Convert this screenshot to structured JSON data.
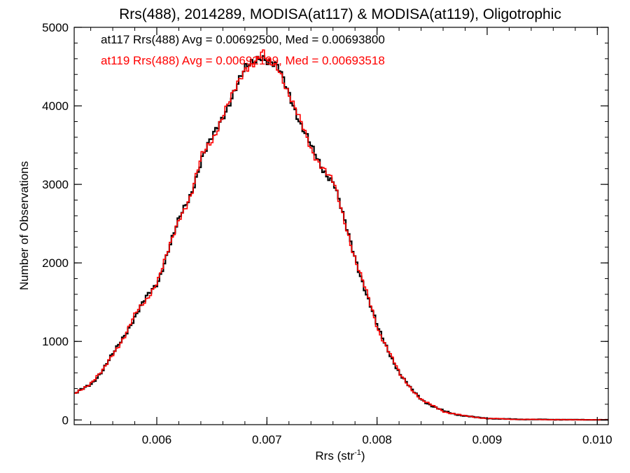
{
  "chart_data": {
    "type": "line",
    "step": true,
    "title": "Rrs(488), 2014289, MODISA(at117) & MODISA(at119), Oligotrophic",
    "xlabel": "Rrs (str",
    "xlabel_sup": "-1",
    "xlabel_close": ")",
    "ylabel": "Number of Observations",
    "xlim": [
      0.00525,
      0.0101
    ],
    "ylim": [
      -60,
      5000
    ],
    "x_ticks": [
      0.006,
      0.007,
      0.008,
      0.009,
      0.01
    ],
    "x_tick_labels": [
      "0.006",
      "0.007",
      "0.008",
      "0.009",
      "0.010"
    ],
    "y_ticks": [
      0,
      1000,
      2000,
      3000,
      4000,
      5000
    ],
    "y_tick_labels": [
      "0",
      "1000",
      "2000",
      "3000",
      "4000",
      "5000"
    ],
    "x_minor_step": 0.0002,
    "y_minor_step": 200,
    "grid": false,
    "annotations": [
      {
        "text": "at117 Rrs(488) Avg = 0.00692500, Med = 0.00693800",
        "color": "#000000"
      },
      {
        "text": "at119 Rrs(488) Avg = 0.00692199, Med = 0.00693518",
        "color": "#ff0000"
      }
    ],
    "series": [
      {
        "name": "at117",
        "color": "#000000",
        "x": [
          0.00525,
          0.0054,
          0.0055,
          0.0056,
          0.0057,
          0.0058,
          0.0059,
          0.006,
          0.0061,
          0.0062,
          0.0063,
          0.0064,
          0.0065,
          0.0066,
          0.0067,
          0.0068,
          0.0069,
          0.00695,
          0.007,
          0.0071,
          0.0072,
          0.0073,
          0.0074,
          0.0075,
          0.0076,
          0.0077,
          0.0078,
          0.0079,
          0.008,
          0.0081,
          0.0082,
          0.0083,
          0.0084,
          0.0085,
          0.0086,
          0.0087,
          0.0088,
          0.0089,
          0.009,
          0.0091,
          0.0092,
          0.0093,
          0.0095,
          0.0097,
          0.0099,
          0.0101
        ],
        "y": [
          330,
          470,
          630,
          850,
          1090,
          1330,
          1560,
          1760,
          2180,
          2570,
          2880,
          3330,
          3600,
          3900,
          4200,
          4470,
          4620,
          4650,
          4560,
          4460,
          4150,
          3750,
          3450,
          3200,
          3020,
          2500,
          2040,
          1580,
          1160,
          870,
          580,
          390,
          260,
          170,
          110,
          75,
          50,
          30,
          20,
          14,
          10,
          7,
          5,
          3,
          2,
          1
        ]
      },
      {
        "name": "at119",
        "color": "#ff0000",
        "x": [
          0.00525,
          0.0054,
          0.0055,
          0.0056,
          0.0057,
          0.0058,
          0.0059,
          0.006,
          0.0061,
          0.0062,
          0.0063,
          0.0064,
          0.0065,
          0.0066,
          0.0067,
          0.0068,
          0.0069,
          0.00695,
          0.007,
          0.0071,
          0.0072,
          0.0073,
          0.0074,
          0.0075,
          0.0076,
          0.0077,
          0.0078,
          0.0079,
          0.008,
          0.0081,
          0.0082,
          0.0083,
          0.0084,
          0.0085,
          0.0086,
          0.0087,
          0.0088,
          0.0089,
          0.009,
          0.0091,
          0.0092,
          0.0093,
          0.0095,
          0.0097,
          0.0099,
          0.0101
        ],
        "y": [
          340,
          480,
          620,
          860,
          1070,
          1350,
          1540,
          1780,
          2160,
          2590,
          2860,
          3350,
          3580,
          3920,
          4180,
          4490,
          4600,
          4680,
          4540,
          4480,
          4130,
          3770,
          3430,
          3220,
          3000,
          2520,
          2020,
          1600,
          1150,
          880,
          570,
          400,
          255,
          175,
          105,
          78,
          48,
          32,
          19,
          15,
          9,
          7,
          5,
          3,
          2,
          1
        ]
      }
    ]
  }
}
